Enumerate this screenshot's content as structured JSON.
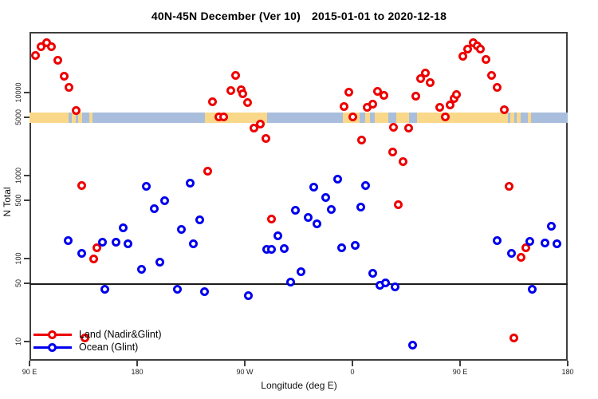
{
  "title": {
    "range_label": "40N-45N December (Ver 10)",
    "date_range": "2015-01-01 to 2020-12-18"
  },
  "axes": {
    "x_label": "Longitude (deg E)",
    "y_label": "N Total"
  },
  "legend": {
    "items": [
      {
        "label": "Land (Nadir&Glint)",
        "color_key": "land_point"
      },
      {
        "label": "Ocean (Glint)",
        "color_key": "ocean_point"
      }
    ]
  },
  "colors": {
    "land_point": "#ee0000",
    "ocean_point": "#0000ee",
    "strip_land": "#fad88a",
    "strip_ocean": "#a8bedc",
    "axis": "#3f3f3f",
    "reference_line": "#1c1c1c",
    "background": "#ffffff"
  },
  "chart_data": {
    "type": "scatter",
    "title": "40N-45N December (Ver 10) 2015-01-01 to 2020-12-18",
    "xlabel": "Longitude (deg E)",
    "ylabel": "N Total",
    "y_scale": "log10",
    "x_axis_note": "longitude unrolled eastward from 90E: 90=90E, 180=180, 270=90W, 360=0, 450=90E, 540=180",
    "x_range": [
      90,
      540
    ],
    "y_range": [
      4.5,
      52000
    ],
    "grid": false,
    "legend_position": "bottom-left-inside",
    "x_ticks": [
      {
        "axis_deg": 90,
        "label": "90 E"
      },
      {
        "axis_deg": 180,
        "label": "180"
      },
      {
        "axis_deg": 270,
        "label": "90 W"
      },
      {
        "axis_deg": 360,
        "label": "0"
      },
      {
        "axis_deg": 450,
        "label": "90 E"
      },
      {
        "axis_deg": 540,
        "label": "180"
      }
    ],
    "y_ticks": [
      {
        "value": 10000,
        "label": "10000"
      },
      {
        "value": 5000,
        "label": "5000"
      },
      {
        "value": 1000,
        "label": "1000"
      },
      {
        "value": 500,
        "label": "500"
      },
      {
        "value": 100,
        "label": "100"
      },
      {
        "value": 50,
        "label": "50"
      },
      {
        "value": 10,
        "label": "10"
      }
    ],
    "reference_line_n": 50,
    "map_strip": {
      "n_level": 5000,
      "segments": [
        [
          90,
          122.7,
          "land"
        ],
        [
          122.7,
          125.3,
          "ocean"
        ],
        [
          125.3,
          128.7,
          "land"
        ],
        [
          128.7,
          130.7,
          "ocean"
        ],
        [
          130.7,
          134,
          "land"
        ],
        [
          134,
          140,
          "ocean"
        ],
        [
          140,
          142.7,
          "land"
        ],
        [
          142.7,
          236.7,
          "ocean"
        ],
        [
          236.7,
          288.7,
          "land"
        ],
        [
          288.7,
          352,
          "ocean"
        ],
        [
          352,
          366,
          "land"
        ],
        [
          366,
          370.7,
          "ocean"
        ],
        [
          370.7,
          374.7,
          "land"
        ],
        [
          374.7,
          378.7,
          "ocean"
        ],
        [
          378.7,
          390,
          "land"
        ],
        [
          390,
          396.7,
          "ocean"
        ],
        [
          396.7,
          407.3,
          "land"
        ],
        [
          407.3,
          414,
          "ocean"
        ],
        [
          414,
          490,
          "land"
        ],
        [
          490,
          492,
          "ocean"
        ],
        [
          492,
          495.3,
          "land"
        ],
        [
          495.3,
          497.3,
          "ocean"
        ],
        [
          497.3,
          500.7,
          "land"
        ],
        [
          500.7,
          506.7,
          "ocean"
        ],
        [
          506.7,
          509.3,
          "land"
        ],
        [
          509.3,
          540,
          "ocean"
        ]
      ]
    },
    "series": [
      {
        "name": "Land (Nadir&Glint)",
        "color_key": "land_point",
        "points": [
          [
            94.7,
            27700
          ],
          [
            99.8,
            35600
          ],
          [
            104.2,
            40100
          ],
          [
            108.2,
            35600
          ],
          [
            113.8,
            24400
          ],
          [
            118.7,
            15900
          ],
          [
            123.1,
            11600
          ],
          [
            128.9,
            6050
          ],
          [
            133.5,
            760
          ],
          [
            136.5,
            11
          ],
          [
            143.5,
            100
          ],
          [
            146.5,
            135
          ],
          [
            238.7,
            1120
          ],
          [
            242.7,
            7800
          ],
          [
            248.5,
            5100
          ],
          [
            252.5,
            5050
          ],
          [
            258.2,
            10500
          ],
          [
            262.2,
            16100
          ],
          [
            267.1,
            10900
          ],
          [
            268.2,
            9700
          ],
          [
            272.2,
            7600
          ],
          [
            277.8,
            3700
          ],
          [
            282.7,
            4200
          ],
          [
            287.5,
            2770
          ],
          [
            292.0,
            300
          ],
          [
            352.9,
            6800
          ],
          [
            356.9,
            10200
          ],
          [
            360.2,
            5100
          ],
          [
            367.5,
            2700
          ],
          [
            372.0,
            6600
          ],
          [
            377.1,
            7300
          ],
          [
            380.9,
            10300
          ],
          [
            386.0,
            9200
          ],
          [
            393.8,
            1920
          ],
          [
            394.0,
            3780
          ],
          [
            398.0,
            450
          ],
          [
            402.0,
            1460
          ],
          [
            406.7,
            3750
          ],
          [
            413.1,
            9000
          ],
          [
            417.1,
            14700
          ],
          [
            420.9,
            17300
          ],
          [
            425.3,
            13200
          ],
          [
            432.7,
            6600
          ],
          [
            437.5,
            5100
          ],
          [
            441.5,
            7100
          ],
          [
            444.7,
            8400
          ],
          [
            447.1,
            9400
          ],
          [
            452.0,
            27500
          ],
          [
            456.0,
            33100
          ],
          [
            460.9,
            39600
          ],
          [
            464.2,
            36200
          ],
          [
            467.1,
            33700
          ],
          [
            471.5,
            25100
          ],
          [
            476.5,
            16100
          ],
          [
            480.9,
            11600
          ],
          [
            487.1,
            6150
          ],
          [
            491.3,
            740
          ],
          [
            494.9,
            11
          ],
          [
            501.3,
            103
          ],
          [
            504.7,
            134
          ]
        ]
      },
      {
        "name": "Ocean (Glint)",
        "color_key": "ocean_point",
        "points": [
          [
            122.5,
            166
          ],
          [
            133.8,
            116
          ],
          [
            150.9,
            158
          ],
          [
            152.7,
            43
          ],
          [
            162.0,
            158
          ],
          [
            168.2,
            237
          ],
          [
            172.0,
            149
          ],
          [
            183.5,
            74
          ],
          [
            187.5,
            735
          ],
          [
            194.2,
            400
          ],
          [
            198.7,
            91
          ],
          [
            203.1,
            500
          ],
          [
            213.8,
            43
          ],
          [
            216.9,
            225
          ],
          [
            224.2,
            815
          ],
          [
            226.9,
            152
          ],
          [
            232.5,
            295
          ],
          [
            236.5,
            40
          ],
          [
            273.1,
            36
          ],
          [
            288.2,
            128
          ],
          [
            292.0,
            128
          ],
          [
            297.5,
            187
          ],
          [
            302.7,
            131
          ],
          [
            308.0,
            52
          ],
          [
            312.5,
            385
          ],
          [
            317.1,
            69
          ],
          [
            323.1,
            315
          ],
          [
            327.5,
            730
          ],
          [
            330.2,
            260
          ],
          [
            337.5,
            540
          ],
          [
            342.0,
            390
          ],
          [
            347.5,
            900
          ],
          [
            351.3,
            136
          ],
          [
            362.5,
            143
          ],
          [
            367.1,
            415
          ],
          [
            371.3,
            755
          ],
          [
            377.1,
            66
          ],
          [
            382.7,
            48
          ],
          [
            387.5,
            51
          ],
          [
            395.8,
            46
          ],
          [
            410.5,
            9
          ],
          [
            481.3,
            166
          ],
          [
            493.1,
            115
          ],
          [
            508.2,
            160
          ],
          [
            510.5,
            43
          ],
          [
            520.9,
            153
          ],
          [
            526.5,
            245
          ],
          [
            531.3,
            151
          ]
        ]
      }
    ]
  }
}
